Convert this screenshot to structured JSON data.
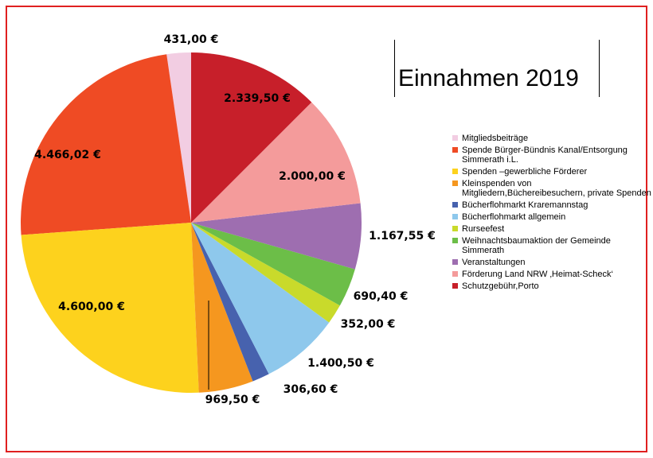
{
  "chart_data": {
    "type": "pie",
    "title": "Einnahmen 2019",
    "categories": [
      "Mitgliedsbeiträge",
      "Spende Bürger-Bündnis Kanal/Entsorgung Simmerath i.L.",
      "Spenden –gewerbliche Förderer",
      "Kleinspenden von Mitgliedern,Büchereibesuchern, private Spenden",
      "Bücherflohmarkt  Kraremannstag",
      "Bücherflohmarkt allgemein",
      "Rurseefest",
      "Weihnachtsbaumaktion der Gemeinde Simmerath",
      "Veranstaltungen",
      "Förderung Land NRW ‚Heimat-Scheck‘",
      "Schutzgebühr,Porto"
    ],
    "values": [
      431.0,
      4466.02,
      4600.0,
      969.5,
      306.6,
      1400.5,
      352.0,
      690.4,
      1167.55,
      2000.0,
      2339.5
    ],
    "value_labels": [
      "431,00 €",
      "4.466,02 €",
      "4.600,00 €",
      "969,50 €",
      "306,60 €",
      "1.400,50 €",
      "352,00 €",
      "690,40 €",
      "1.167,55 €",
      "2.000,00 €",
      "2.339,50 €"
    ],
    "colors": [
      "#f2cde2",
      "#ef4b24",
      "#fdd21d",
      "#f5971f",
      "#4762ae",
      "#8ec8ec",
      "#c9da2b",
      "#6cbe48",
      "#9e6eb0",
      "#f49b9b",
      "#c71f2a"
    ],
    "legend": "right"
  }
}
